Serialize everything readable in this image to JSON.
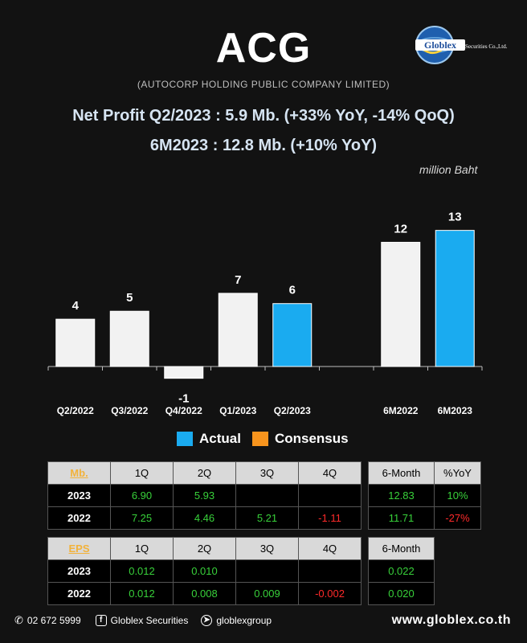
{
  "header": {
    "ticker": "ACG",
    "company": "(AUTOCORP HOLDING PUBLIC COMPANY LIMITED)",
    "headline1": "Net Profit  Q2/2023 : 5.9 Mb. (+33% YoY, -14% QoQ)",
    "headline2": "6M2023 : 12.8 Mb. (+10% YoY)",
    "unit": "million Baht",
    "logo_text": "Globlex",
    "logo_sub": "Securities Co.,Ltd."
  },
  "chart_data": {
    "type": "bar",
    "categories": [
      "Q2/2022",
      "Q3/2022",
      "Q4/2022",
      "Q1/2023",
      "Q2/2023",
      "",
      "6M2022",
      "6M2023"
    ],
    "values": [
      4.46,
      5.21,
      -1.11,
      6.9,
      5.93,
      null,
      11.71,
      12.83
    ],
    "labels": [
      "4",
      "5",
      "-1",
      "7",
      "6",
      "",
      "12",
      "13"
    ],
    "highlight": [
      false,
      false,
      false,
      false,
      true,
      false,
      false,
      true
    ],
    "colors": {
      "actual": "#1aabf0",
      "previous": "#f2f2f2",
      "consensus": "#f7941d"
    },
    "legend": [
      "Actual",
      "Consensus"
    ],
    "ylabel": "million Baht"
  },
  "profit_table": {
    "key": "Mb.",
    "quarter_headers": [
      "1Q",
      "2Q",
      "3Q",
      "4Q"
    ],
    "summary_headers": [
      "6-Month",
      "%YoY"
    ],
    "rows": [
      {
        "year": "2023",
        "q": [
          "6.90",
          "5.93",
          "",
          ""
        ],
        "six_month": "12.83",
        "yoy": "10%"
      },
      {
        "year": "2022",
        "q": [
          "7.25",
          "4.46",
          "5.21",
          "-1.11"
        ],
        "six_month": "11.71",
        "yoy": "-27%"
      }
    ]
  },
  "eps_table": {
    "key": "EPS",
    "quarter_headers": [
      "1Q",
      "2Q",
      "3Q",
      "4Q"
    ],
    "summary_headers": [
      "6-Month"
    ],
    "rows": [
      {
        "year": "2023",
        "q": [
          "0.012",
          "0.010",
          "",
          ""
        ],
        "six_month": "0.022"
      },
      {
        "year": "2022",
        "q": [
          "0.012",
          "0.008",
          "0.009",
          "-0.002"
        ],
        "six_month": "0.020"
      }
    ]
  },
  "footer": {
    "phone": "02 672 5999",
    "facebook": "Globlex Securities",
    "telegram": "globlexgroup",
    "website": "www.globlex.co.th"
  }
}
